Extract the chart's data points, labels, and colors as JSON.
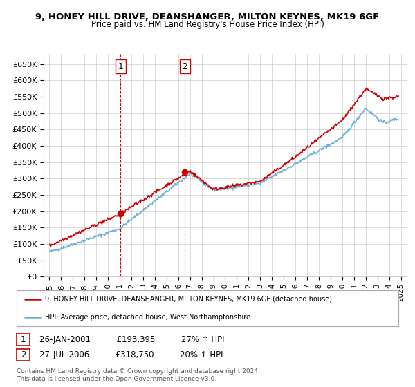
{
  "title": "9, HONEY HILL DRIVE, DEANSHANGER, MILTON KEYNES, MK19 6GF",
  "subtitle": "Price paid vs. HM Land Registry's House Price Index (HPI)",
  "ylabel_ticks": [
    "£0",
    "£50K",
    "£100K",
    "£150K",
    "£200K",
    "£250K",
    "£300K",
    "£350K",
    "£400K",
    "£450K",
    "£500K",
    "£550K",
    "£600K",
    "£650K"
  ],
  "ytick_values": [
    0,
    50000,
    100000,
    150000,
    200000,
    250000,
    300000,
    350000,
    400000,
    450000,
    500000,
    550000,
    600000,
    650000
  ],
  "ylim": [
    0,
    680000
  ],
  "xlim_start": 1994.5,
  "xlim_end": 2025.5,
  "xtick_years": [
    1995,
    1996,
    1997,
    1998,
    1999,
    2000,
    2001,
    2002,
    2003,
    2004,
    2005,
    2006,
    2007,
    2008,
    2009,
    2010,
    2011,
    2012,
    2013,
    2014,
    2015,
    2016,
    2017,
    2018,
    2019,
    2020,
    2021,
    2022,
    2023,
    2024,
    2025
  ],
  "sale1_x": 2001.07,
  "sale1_y": 193395,
  "sale2_x": 2006.57,
  "sale2_y": 318750,
  "hpi_color": "#6baed6",
  "price_color": "#cc0000",
  "background_color": "#ffffff",
  "grid_color": "#cccccc",
  "legend_line1": "9, HONEY HILL DRIVE, DEANSHANGER, MILTON KEYNES, MK19 6GF (detached house)",
  "legend_line2": "HPI: Average price, detached house, West Northamptonshire",
  "table_row1": [
    "1",
    "26-JAN-2001",
    "£193,395",
    "27% ↑ HPI"
  ],
  "table_row2": [
    "2",
    "27-JUL-2006",
    "£318,750",
    "20% ↑ HPI"
  ],
  "footnote": "Contains HM Land Registry data © Crown copyright and database right 2024.\nThis data is licensed under the Open Government Licence v3.0."
}
